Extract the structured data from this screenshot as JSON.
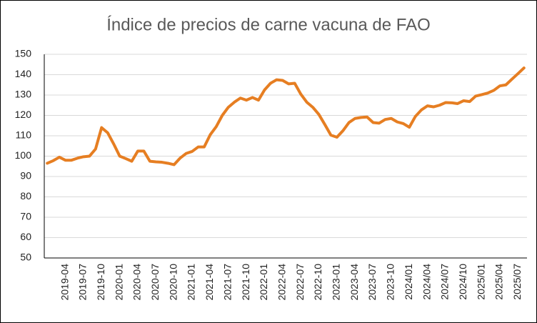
{
  "chart_data": {
    "type": "line",
    "title": "Índice de precios de carne vacuna de FAO",
    "categories": [
      null,
      null,
      null,
      "2019-04",
      null,
      null,
      "2019-07",
      null,
      null,
      "2019-10",
      null,
      null,
      "2020-01",
      null,
      null,
      "2020-04",
      null,
      null,
      "2020-07",
      null,
      null,
      "2020-10",
      null,
      null,
      "2021-01",
      null,
      null,
      "2021-04",
      null,
      null,
      "2021-07",
      null,
      null,
      "2021-10",
      null,
      null,
      "2022-01",
      null,
      null,
      "2022-04",
      null,
      null,
      "2022-07",
      null,
      null,
      "2022-10",
      null,
      null,
      "2023-01",
      null,
      null,
      "2023-04",
      null,
      null,
      "2023-07",
      null,
      null,
      "2023-10",
      null,
      null,
      "2024/01",
      null,
      null,
      "2024/04",
      null,
      null,
      "2024/07",
      null,
      null,
      "2024/10",
      null,
      null,
      "2025/01",
      null,
      null,
      "2025/04",
      null,
      null,
      "2025/07",
      null
    ],
    "values": [
      96.5,
      97.8,
      99.5,
      98,
      98,
      99,
      99.7,
      100,
      103.5,
      114,
      111.5,
      106,
      100,
      98.8,
      97.5,
      102.5,
      102.5,
      97.5,
      97.2,
      97,
      96.5,
      95.8,
      99,
      101.3,
      102.3,
      104.5,
      104.5,
      110.5,
      114.5,
      120,
      124,
      126.5,
      128.5,
      127.5,
      128.8,
      127.5,
      132.5,
      135.8,
      137.5,
      137.2,
      135.5,
      135.8,
      130.5,
      126.5,
      124,
      120.5,
      115.5,
      110.3,
      109.3,
      112.5,
      116.5,
      118.5,
      119,
      119.2,
      116.5,
      116.2,
      118,
      118.5,
      116.8,
      116,
      114.2,
      119.5,
      122.7,
      124.7,
      124.2,
      125,
      126.3,
      126.2,
      125.8,
      127.2,
      126.8,
      129.5,
      130.2,
      131,
      132.3,
      134.5,
      135,
      137.8,
      140.5,
      143.3
    ],
    "color": "#e67e22",
    "ylim": [
      50,
      150
    ],
    "yticks": [
      50,
      60,
      70,
      80,
      90,
      100,
      110,
      120,
      130,
      140,
      150
    ],
    "grid": true
  }
}
